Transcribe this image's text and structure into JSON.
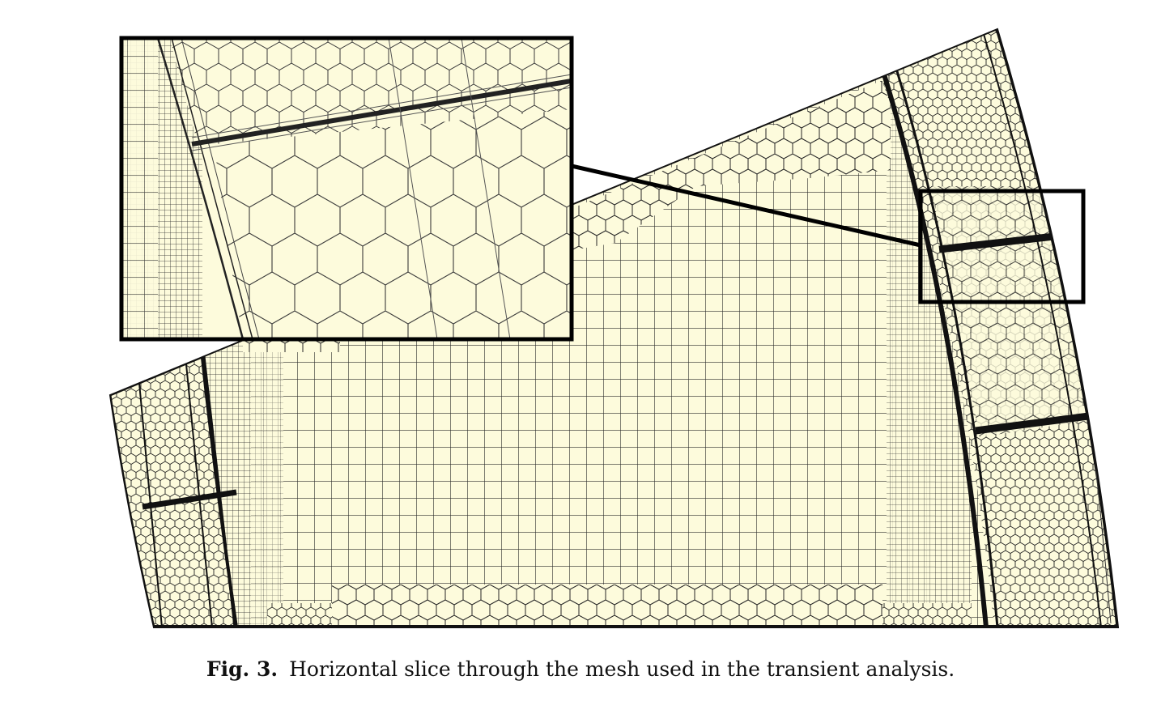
{
  "caption": {
    "label": "Fig. 3.",
    "text": "Horizontal slice through the mesh used in the transient analysis."
  },
  "colors": {
    "mesh_fill": "#fdfbdc",
    "mesh_line": "#1a1a1a",
    "frame": "#000000",
    "page": "#ffffff"
  }
}
